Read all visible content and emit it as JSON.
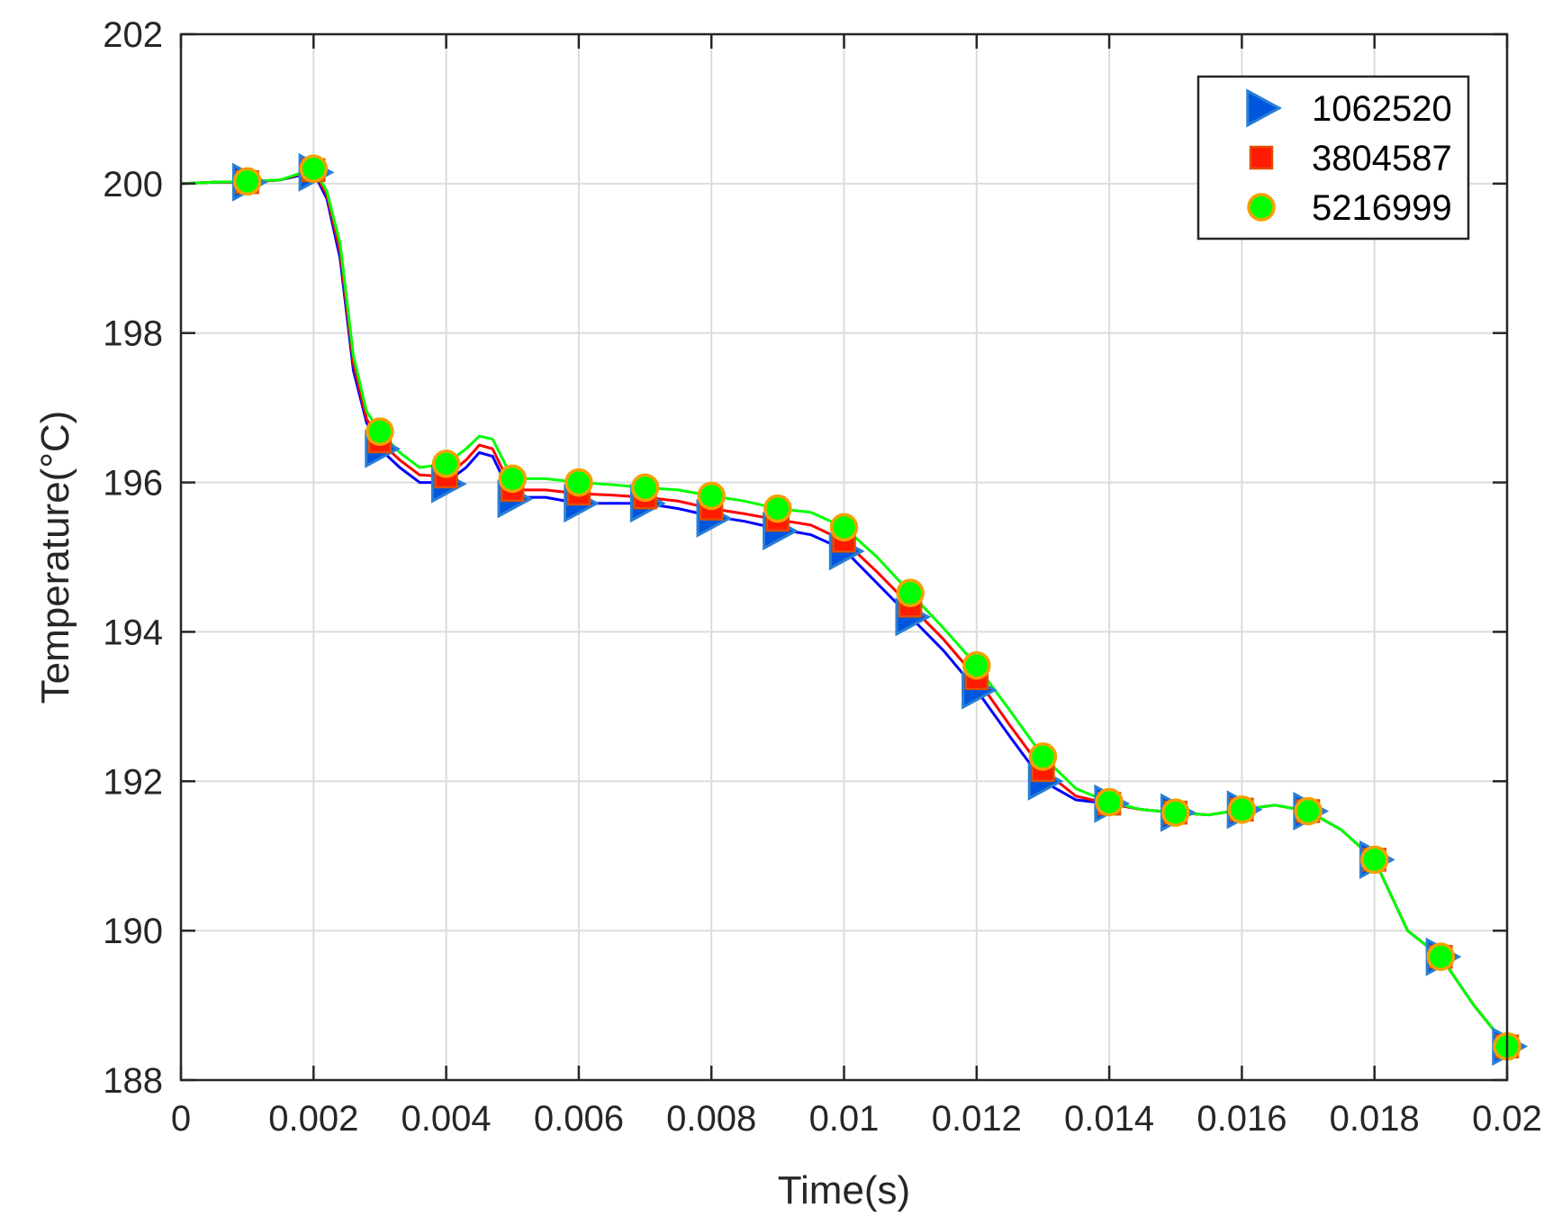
{
  "chart_data": {
    "type": "line",
    "title": "",
    "xlabel": "Time(s)",
    "ylabel": "Temperature(°C)",
    "xlim": [
      0,
      0.02
    ],
    "ylim": [
      188,
      202
    ],
    "xticks": [
      0,
      0.002,
      0.004,
      0.006,
      0.008,
      0.01,
      0.012,
      0.014,
      0.016,
      0.018,
      0.02
    ],
    "xtick_labels": [
      "0",
      "0.002",
      "0.004",
      "0.006",
      "0.008",
      "0.01",
      "0.012",
      "0.014",
      "0.016",
      "0.018",
      "0.02"
    ],
    "yticks": [
      188,
      190,
      192,
      194,
      196,
      198,
      200,
      202
    ],
    "ytick_labels": [
      "188",
      "190",
      "192",
      "194",
      "196",
      "198",
      "200",
      "202"
    ],
    "grid": true,
    "legend_position": "top-right",
    "series": [
      {
        "name": "1062520",
        "line_color": "#0000ff",
        "marker": "triangle-right",
        "marker_fill": "#0055dd",
        "marker_edge": "#2a7fd4",
        "line": [
          [
            0,
            200.0
          ],
          [
            0.0005,
            200.02
          ],
          [
            0.001,
            200.02
          ],
          [
            0.0015,
            200.05
          ],
          [
            0.002,
            200.15
          ],
          [
            0.0022,
            199.8
          ],
          [
            0.0024,
            199.0
          ],
          [
            0.0026,
            197.5
          ],
          [
            0.0028,
            196.8
          ],
          [
            0.003,
            196.45
          ],
          [
            0.0033,
            196.2
          ],
          [
            0.0036,
            196.0
          ],
          [
            0.004,
            196.0
          ],
          [
            0.0043,
            196.2
          ],
          [
            0.0045,
            196.4
          ],
          [
            0.0047,
            196.35
          ],
          [
            0.005,
            195.8
          ],
          [
            0.0055,
            195.8
          ],
          [
            0.006,
            195.72
          ],
          [
            0.0065,
            195.72
          ],
          [
            0.007,
            195.72
          ],
          [
            0.0075,
            195.65
          ],
          [
            0.008,
            195.55
          ],
          [
            0.0085,
            195.48
          ],
          [
            0.009,
            195.38
          ],
          [
            0.0095,
            195.3
          ],
          [
            0.01,
            195.1
          ],
          [
            0.0105,
            194.65
          ],
          [
            0.011,
            194.2
          ],
          [
            0.0115,
            193.75
          ],
          [
            0.012,
            193.22
          ],
          [
            0.0125,
            192.6
          ],
          [
            0.013,
            192.0
          ],
          [
            0.0135,
            191.75
          ],
          [
            0.014,
            191.7
          ],
          [
            0.0145,
            191.62
          ],
          [
            0.015,
            191.58
          ],
          [
            0.0155,
            191.55
          ],
          [
            0.016,
            191.62
          ],
          [
            0.0165,
            191.68
          ],
          [
            0.017,
            191.6
          ],
          [
            0.0175,
            191.35
          ],
          [
            0.018,
            190.95
          ],
          [
            0.0185,
            190.0
          ],
          [
            0.019,
            189.65
          ],
          [
            0.0195,
            189.0
          ],
          [
            0.02,
            188.45
          ]
        ],
        "markers": [
          [
            0.001,
            200.02
          ],
          [
            0.002,
            200.15
          ],
          [
            0.003,
            196.45
          ],
          [
            0.004,
            195.98
          ],
          [
            0.005,
            195.78
          ],
          [
            0.006,
            195.72
          ],
          [
            0.007,
            195.72
          ],
          [
            0.008,
            195.52
          ],
          [
            0.009,
            195.35
          ],
          [
            0.01,
            195.08
          ],
          [
            0.011,
            194.2
          ],
          [
            0.012,
            193.22
          ],
          [
            0.013,
            192.0
          ],
          [
            0.014,
            191.7
          ],
          [
            0.015,
            191.58
          ],
          [
            0.016,
            191.62
          ],
          [
            0.017,
            191.6
          ],
          [
            0.018,
            190.95
          ],
          [
            0.019,
            189.65
          ],
          [
            0.02,
            188.45
          ]
        ]
      },
      {
        "name": "3804587",
        "line_color": "#ff0000",
        "marker": "square",
        "marker_fill": "#ff1a00",
        "marker_edge": "#e05000",
        "line": [
          [
            0,
            200.0
          ],
          [
            0.0005,
            200.02
          ],
          [
            0.001,
            200.02
          ],
          [
            0.0015,
            200.05
          ],
          [
            0.002,
            200.18
          ],
          [
            0.0022,
            199.85
          ],
          [
            0.0024,
            199.1
          ],
          [
            0.0026,
            197.6
          ],
          [
            0.0028,
            196.85
          ],
          [
            0.003,
            196.55
          ],
          [
            0.0033,
            196.3
          ],
          [
            0.0036,
            196.1
          ],
          [
            0.004,
            196.08
          ],
          [
            0.0043,
            196.3
          ],
          [
            0.0045,
            196.5
          ],
          [
            0.0047,
            196.45
          ],
          [
            0.005,
            195.9
          ],
          [
            0.0055,
            195.9
          ],
          [
            0.006,
            195.85
          ],
          [
            0.0065,
            195.83
          ],
          [
            0.007,
            195.8
          ],
          [
            0.0075,
            195.75
          ],
          [
            0.008,
            195.65
          ],
          [
            0.0085,
            195.58
          ],
          [
            0.009,
            195.5
          ],
          [
            0.0095,
            195.43
          ],
          [
            0.01,
            195.22
          ],
          [
            0.0105,
            194.8
          ],
          [
            0.011,
            194.35
          ],
          [
            0.0115,
            193.9
          ],
          [
            0.012,
            193.38
          ],
          [
            0.0125,
            192.75
          ],
          [
            0.013,
            192.15
          ],
          [
            0.0135,
            191.8
          ],
          [
            0.014,
            191.7
          ],
          [
            0.0145,
            191.62
          ],
          [
            0.015,
            191.58
          ],
          [
            0.0155,
            191.55
          ],
          [
            0.016,
            191.62
          ],
          [
            0.0165,
            191.68
          ],
          [
            0.017,
            191.6
          ],
          [
            0.0175,
            191.35
          ],
          [
            0.018,
            190.95
          ],
          [
            0.0185,
            190.0
          ],
          [
            0.019,
            189.65
          ],
          [
            0.0195,
            189.0
          ],
          [
            0.02,
            188.45
          ]
        ],
        "markers": [
          [
            0.001,
            200.02
          ],
          [
            0.002,
            200.18
          ],
          [
            0.003,
            196.55
          ],
          [
            0.004,
            196.08
          ],
          [
            0.005,
            195.9
          ],
          [
            0.006,
            195.85
          ],
          [
            0.007,
            195.8
          ],
          [
            0.008,
            195.65
          ],
          [
            0.009,
            195.5
          ],
          [
            0.01,
            195.22
          ],
          [
            0.011,
            194.35
          ],
          [
            0.012,
            193.38
          ],
          [
            0.013,
            192.15
          ],
          [
            0.014,
            191.7
          ],
          [
            0.015,
            191.58
          ],
          [
            0.016,
            191.62
          ],
          [
            0.017,
            191.6
          ],
          [
            0.018,
            190.95
          ],
          [
            0.019,
            189.65
          ],
          [
            0.02,
            188.45
          ]
        ]
      },
      {
        "name": "5216999",
        "line_color": "#00ff00",
        "marker": "circle",
        "marker_fill": "#00ff00",
        "marker_edge": "#f5a000",
        "line": [
          [
            0,
            200.0
          ],
          [
            0.0005,
            200.02
          ],
          [
            0.001,
            200.03
          ],
          [
            0.0015,
            200.05
          ],
          [
            0.002,
            200.2
          ],
          [
            0.0022,
            199.9
          ],
          [
            0.0024,
            199.2
          ],
          [
            0.0026,
            197.7
          ],
          [
            0.0028,
            196.95
          ],
          [
            0.003,
            196.68
          ],
          [
            0.0033,
            196.4
          ],
          [
            0.0036,
            196.2
          ],
          [
            0.004,
            196.25
          ],
          [
            0.0043,
            196.45
          ],
          [
            0.0045,
            196.62
          ],
          [
            0.0047,
            196.58
          ],
          [
            0.005,
            196.05
          ],
          [
            0.0055,
            196.05
          ],
          [
            0.006,
            196.0
          ],
          [
            0.0065,
            195.97
          ],
          [
            0.007,
            195.93
          ],
          [
            0.0075,
            195.9
          ],
          [
            0.008,
            195.82
          ],
          [
            0.0085,
            195.75
          ],
          [
            0.009,
            195.65
          ],
          [
            0.0095,
            195.6
          ],
          [
            0.01,
            195.4
          ],
          [
            0.0105,
            195.0
          ],
          [
            0.011,
            194.52
          ],
          [
            0.0115,
            194.05
          ],
          [
            0.012,
            193.55
          ],
          [
            0.0125,
            192.95
          ],
          [
            0.013,
            192.33
          ],
          [
            0.0135,
            191.9
          ],
          [
            0.014,
            191.72
          ],
          [
            0.0145,
            191.62
          ],
          [
            0.015,
            191.58
          ],
          [
            0.0155,
            191.55
          ],
          [
            0.016,
            191.62
          ],
          [
            0.0165,
            191.68
          ],
          [
            0.017,
            191.6
          ],
          [
            0.0175,
            191.35
          ],
          [
            0.018,
            190.95
          ],
          [
            0.0185,
            190.0
          ],
          [
            0.019,
            189.65
          ],
          [
            0.0195,
            189.0
          ],
          [
            0.02,
            188.45
          ]
        ],
        "markers": [
          [
            0.001,
            200.03
          ],
          [
            0.002,
            200.2
          ],
          [
            0.003,
            196.68
          ],
          [
            0.004,
            196.25
          ],
          [
            0.005,
            196.05
          ],
          [
            0.006,
            196.0
          ],
          [
            0.007,
            195.93
          ],
          [
            0.008,
            195.82
          ],
          [
            0.009,
            195.65
          ],
          [
            0.01,
            195.4
          ],
          [
            0.011,
            194.52
          ],
          [
            0.012,
            193.55
          ],
          [
            0.013,
            192.33
          ],
          [
            0.014,
            191.72
          ],
          [
            0.015,
            191.58
          ],
          [
            0.016,
            191.62
          ],
          [
            0.017,
            191.6
          ],
          [
            0.018,
            190.95
          ],
          [
            0.019,
            189.65
          ],
          [
            0.02,
            188.45
          ]
        ]
      }
    ]
  }
}
